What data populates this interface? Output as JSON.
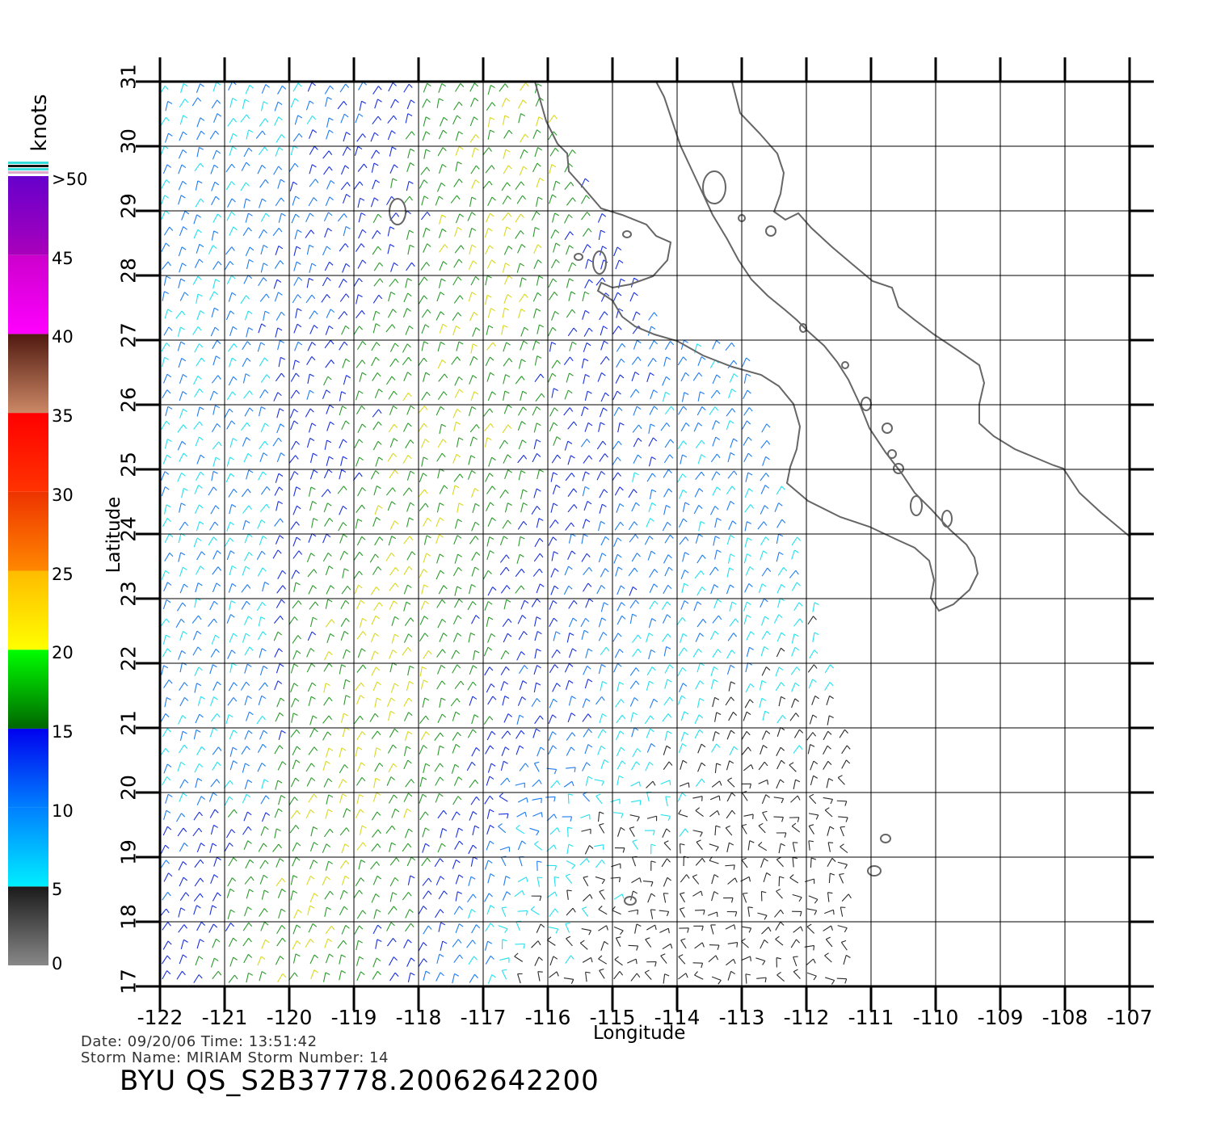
{
  "axes": {
    "x_title": "Longitude",
    "y_title": "Latitude",
    "lon_ticks": [
      "-122",
      "-121",
      "-120",
      "-119",
      "-118",
      "-117",
      "-116",
      "-115",
      "-114",
      "-113",
      "-112",
      "-111",
      "-110",
      "-109",
      "-108",
      "-107"
    ],
    "lat_ticks": [
      "17",
      "18",
      "19",
      "20",
      "21",
      "22",
      "23",
      "24",
      "25",
      "26",
      "27",
      "28",
      "29",
      "30",
      "31"
    ],
    "lon_range": [
      -122,
      -107
    ],
    "lat_range": [
      17,
      31
    ],
    "grid": true
  },
  "colorbar": {
    "title": "knots",
    "labels": [
      "0",
      "5",
      "10",
      "15",
      "20",
      "25",
      "30",
      "35",
      "40",
      "45",
      ">50"
    ],
    "segments": [
      {
        "from": 0,
        "to": 5,
        "colors": [
          "#888888",
          "#1a1a1a"
        ]
      },
      {
        "from": 5,
        "to": 10,
        "colors": [
          "#00eeff",
          "#0080ff"
        ]
      },
      {
        "from": 10,
        "to": 15,
        "colors": [
          "#0080ff",
          "#0000ee"
        ]
      },
      {
        "from": 15,
        "to": 20,
        "colors": [
          "#006600",
          "#00ff00"
        ]
      },
      {
        "from": 20,
        "to": 25,
        "colors": [
          "#ffff00",
          "#ffbb00"
        ]
      },
      {
        "from": 25,
        "to": 30,
        "colors": [
          "#ff8800",
          "#ee3300"
        ]
      },
      {
        "from": 30,
        "to": 35,
        "colors": [
          "#ff3300",
          "#ff0000"
        ]
      },
      {
        "from": 35,
        "to": 40,
        "colors": [
          "#cc8866",
          "#501a10"
        ]
      },
      {
        "from": 40,
        "to": 45,
        "colors": [
          "#ff00ff",
          "#cc00cc"
        ]
      },
      {
        "from": 45,
        "to": 50,
        "colors": [
          "#aa00bb",
          "#6600cc"
        ]
      }
    ]
  },
  "metadata": {
    "date_line": "Date:  09/20/06    Time:  13:51:42",
    "storm_line": "Storm  Name:  MIRIAM    Storm  Number:  14",
    "product_id": "BYU  QS_S2B37778.20062642200"
  },
  "colors": {
    "grid": "#000000",
    "coastline": "#666666"
  }
}
